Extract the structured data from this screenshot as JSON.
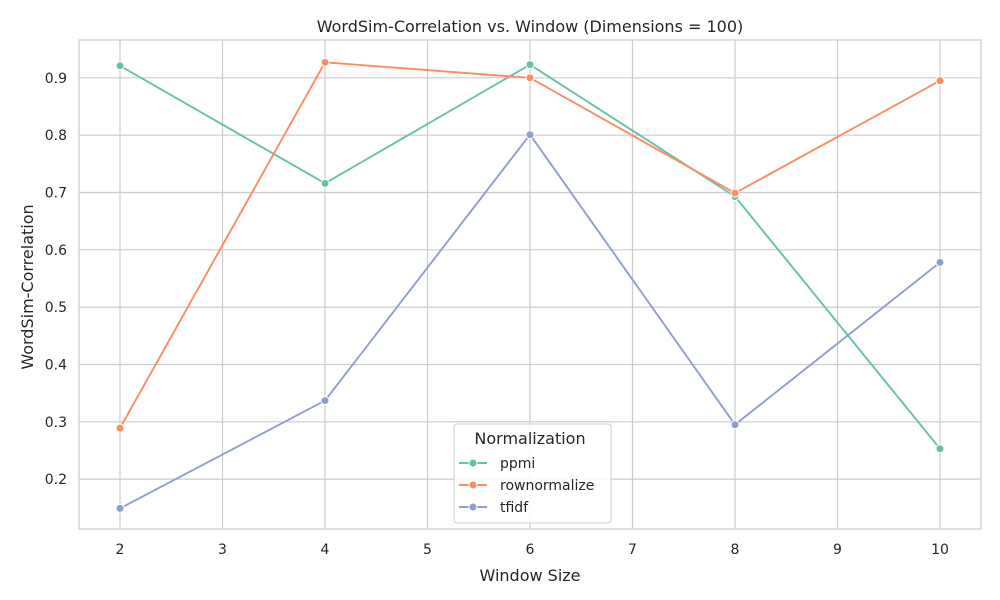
{
  "chart_data": {
    "type": "line",
    "title": "WordSim-Correlation vs. Window (Dimensions = 100)",
    "xlabel": "Window Size",
    "ylabel": "WordSim-Correlation",
    "x": [
      2,
      4,
      6,
      8,
      10
    ],
    "x_ticks": [
      2,
      3,
      4,
      5,
      6,
      7,
      8,
      9,
      10
    ],
    "y_ticks": [
      0.2,
      0.3,
      0.4,
      0.5,
      0.6,
      0.7,
      0.8,
      0.9
    ],
    "xlim": [
      1.6,
      10.4
    ],
    "ylim": [
      0.113,
      0.966
    ],
    "grid": true,
    "legend": {
      "title": "Normalization",
      "placement": "bottom-center"
    },
    "series": [
      {
        "name": "ppmi",
        "color": "#66c2a5",
        "values": [
          0.921,
          0.716,
          0.923,
          0.693,
          0.253
        ]
      },
      {
        "name": "rownormalize",
        "color": "#fc8d62",
        "values": [
          0.289,
          0.927,
          0.9,
          0.699,
          0.895
        ]
      },
      {
        "name": "tfidf",
        "color": "#8da0cb",
        "values": [
          0.149,
          0.337,
          0.801,
          0.295,
          0.578
        ]
      }
    ]
  }
}
